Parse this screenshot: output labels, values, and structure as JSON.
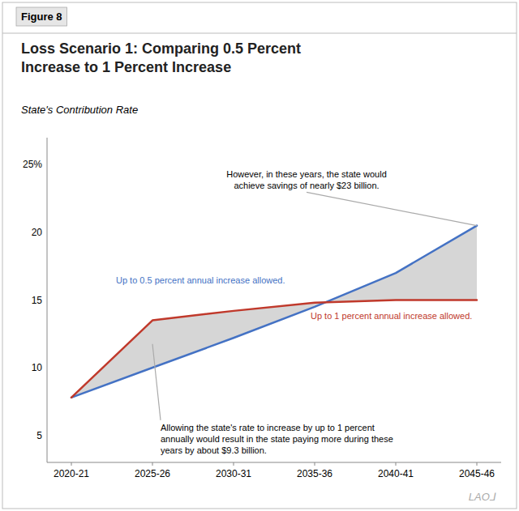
{
  "chart_data": {
    "type": "line",
    "figure_label": "Figure 8",
    "title": "Loss Scenario 1: Comparing 0.5 Percent\nIncrease to 1 Percent Increase",
    "subtitle": "State's Contribution Rate",
    "categories": [
      "2020-21",
      "2025-26",
      "2030-31",
      "2035-36",
      "2040-41",
      "2045-46"
    ],
    "series": [
      {
        "name": "Up to 0.5 percent annual increase allowed.",
        "color": "#4472c4",
        "values": [
          7.8,
          10.0,
          12.2,
          14.5,
          17.0,
          20.5
        ]
      },
      {
        "name": "Up to 1 percent annual increase allowed.",
        "color": "#c0392b",
        "values": [
          7.8,
          13.5,
          14.2,
          14.8,
          15.0,
          15.0
        ]
      }
    ],
    "ylim": [
      3,
      27
    ],
    "yticks": [
      5,
      10,
      15,
      20,
      {
        "value": 25,
        "label": "25%"
      }
    ],
    "grid": false,
    "annotations": [
      "However, in these years, the state would\nachieve savings of nearly $23 billion.",
      "Allowing the state's rate to increase by up to 1 percent\nannually would result in the state paying more during these\nyears by about $9.3 billion."
    ],
    "watermark": "LAO⅃"
  }
}
